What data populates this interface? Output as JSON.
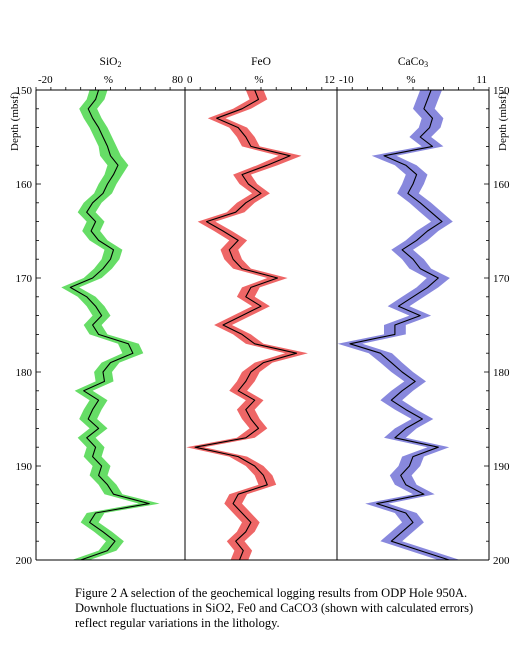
{
  "figure": {
    "caption_lines": [
      "Figure 2 A selection of the geochemical logging results from ODP Hole 950A.",
      "Downhole fluctuations in SiO2, Fe0 and CaCO3 (shown with calculated errors)",
      "reflect regular variations in the lithology."
    ]
  },
  "chart_data": {
    "type": "line",
    "y_axis": {
      "label": "Depth (mbsf)",
      "range": [
        150,
        200
      ],
      "inverted": true,
      "ticks": [
        150,
        160,
        170,
        180,
        190,
        200
      ],
      "tick_labels": [
        "150",
        "160",
        "170",
        "180",
        "190",
        "200"
      ],
      "shown_left_and_right": true
    },
    "panels": [
      {
        "name": "SiO2",
        "title_main": "SiO",
        "title_sub": "2",
        "x_unit_label": "%",
        "x_range": [
          -20,
          80
        ],
        "x_tick_labels": [
          "-20",
          "80"
        ],
        "band_color": "#66dd66",
        "line_color": "#000000",
        "depth": [
          150,
          151,
          152,
          153,
          154,
          155,
          156,
          157,
          158,
          159,
          160,
          161,
          162,
          163,
          164,
          165,
          166,
          167,
          168,
          169,
          170,
          171,
          172,
          173,
          174,
          175,
          176,
          177,
          178,
          179,
          180,
          181,
          182,
          183,
          184,
          185,
          186,
          187,
          188,
          189,
          190,
          191,
          192,
          193,
          194,
          195,
          196,
          197,
          198,
          199,
          200
        ],
        "values": [
          22,
          20,
          15,
          18,
          22,
          25,
          28,
          30,
          35,
          32,
          28,
          25,
          18,
          14,
          20,
          17,
          22,
          32,
          30,
          25,
          18,
          3,
          14,
          20,
          24,
          18,
          22,
          42,
          45,
          30,
          25,
          26,
          12,
          22,
          18,
          15,
          22,
          14,
          20,
          18,
          24,
          22,
          28,
          32,
          56,
          20,
          16,
          25,
          33,
          28,
          10
        ],
        "error": [
          6,
          6,
          6,
          6,
          6,
          6,
          6,
          7,
          7,
          6,
          6,
          6,
          6,
          6,
          6,
          6,
          6,
          6,
          6,
          6,
          6,
          6,
          6,
          6,
          6,
          6,
          6,
          7,
          7,
          6,
          6,
          6,
          6,
          6,
          6,
          6,
          6,
          6,
          6,
          6,
          6,
          6,
          6,
          6,
          7,
          6,
          6,
          6,
          6,
          6,
          6
        ]
      },
      {
        "name": "FeO",
        "title_main": "FeO",
        "title_sub": "",
        "x_unit_label": "%",
        "x_range": [
          0,
          12
        ],
        "x_tick_labels": [
          "0",
          "12"
        ],
        "band_color": "#ee6666",
        "line_color": "#000000",
        "depth": [
          150,
          151,
          152,
          153,
          154,
          155,
          156,
          157,
          158,
          159,
          160,
          161,
          162,
          163,
          164,
          165,
          166,
          167,
          168,
          169,
          170,
          171,
          172,
          173,
          174,
          175,
          176,
          177,
          178,
          179,
          180,
          181,
          182,
          183,
          184,
          185,
          186,
          187,
          188,
          189,
          190,
          191,
          192,
          193,
          194,
          195,
          196,
          197,
          198,
          199,
          200
        ],
        "values": [
          5.5,
          5.8,
          4.5,
          2.5,
          4.2,
          4.8,
          5.2,
          8.3,
          6.5,
          4.5,
          5.0,
          6.0,
          4.8,
          4.0,
          1.7,
          3.0,
          4.2,
          3.5,
          3.8,
          4.5,
          7.3,
          5.2,
          4.8,
          6.0,
          4.5,
          3.0,
          4.5,
          5.5,
          8.8,
          6.2,
          5.2,
          4.8,
          4.2,
          5.5,
          4.8,
          5.2,
          5.8,
          4.8,
          0.8,
          4.2,
          5.5,
          6.2,
          6.5,
          4.2,
          3.8,
          4.5,
          5.2,
          4.8,
          4.0,
          4.6,
          4.3
        ],
        "error": [
          0.7,
          0.7,
          0.7,
          0.7,
          0.7,
          0.7,
          0.7,
          0.9,
          0.8,
          0.7,
          0.7,
          0.7,
          0.7,
          0.7,
          0.7,
          0.7,
          0.7,
          0.7,
          0.7,
          0.7,
          0.8,
          0.7,
          0.7,
          0.7,
          0.7,
          0.7,
          0.7,
          0.7,
          0.9,
          0.7,
          0.7,
          0.7,
          0.7,
          0.7,
          0.7,
          0.7,
          0.7,
          0.7,
          0.7,
          0.7,
          0.7,
          0.7,
          0.7,
          0.7,
          0.7,
          0.7,
          0.7,
          0.7,
          0.7,
          0.7,
          0.7
        ]
      },
      {
        "name": "CaCO3",
        "title_main": "CaCo",
        "title_sub": "3",
        "x_unit_label": "%",
        "x_range": [
          -10,
          11
        ],
        "x_tick_labels": [
          "-10",
          "11"
        ],
        "band_color": "#8888dd",
        "line_color": "#000000",
        "depth": [
          150,
          151,
          152,
          153,
          154,
          155,
          156,
          157,
          158,
          159,
          160,
          161,
          162,
          163,
          164,
          165,
          166,
          167,
          168,
          169,
          170,
          171,
          172,
          173,
          174,
          175,
          176,
          177,
          178,
          179,
          180,
          181,
          182,
          183,
          184,
          185,
          186,
          187,
          188,
          189,
          190,
          191,
          192,
          193,
          194,
          195,
          196,
          197,
          198,
          199,
          200
        ],
        "values": [
          3.0,
          2.5,
          2.0,
          3.2,
          2.8,
          1.5,
          3.2,
          -3.5,
          -0.5,
          1.0,
          0.5,
          -0.2,
          1.5,
          3.0,
          4.5,
          2.5,
          1.0,
          -1.0,
          0.5,
          1.5,
          4.0,
          2.5,
          0.5,
          -1.5,
          1.5,
          -2.0,
          -2.0,
          -8.2,
          -4.0,
          -2.5,
          -1.0,
          0.8,
          -1.0,
          -2.5,
          -0.5,
          1.8,
          -0.5,
          -2.0,
          4.0,
          0.5,
          0.0,
          -1.2,
          -0.5,
          2.0,
          -4.5,
          -0.5,
          0.5,
          -1.0,
          -2.5,
          1.5,
          5.5
        ],
        "error": [
          1.5,
          1.5,
          1.5,
          1.5,
          1.5,
          1.5,
          1.5,
          1.7,
          1.5,
          1.5,
          1.5,
          1.5,
          1.5,
          1.5,
          1.5,
          1.5,
          1.5,
          1.5,
          1.5,
          1.5,
          1.6,
          1.5,
          1.5,
          1.5,
          1.5,
          1.5,
          1.5,
          1.7,
          1.6,
          1.5,
          1.5,
          1.5,
          1.5,
          1.5,
          1.5,
          1.5,
          1.5,
          1.5,
          1.5,
          1.5,
          1.5,
          1.5,
          1.5,
          1.5,
          1.6,
          1.5,
          1.5,
          1.5,
          1.5,
          1.5,
          1.5
        ]
      }
    ]
  }
}
